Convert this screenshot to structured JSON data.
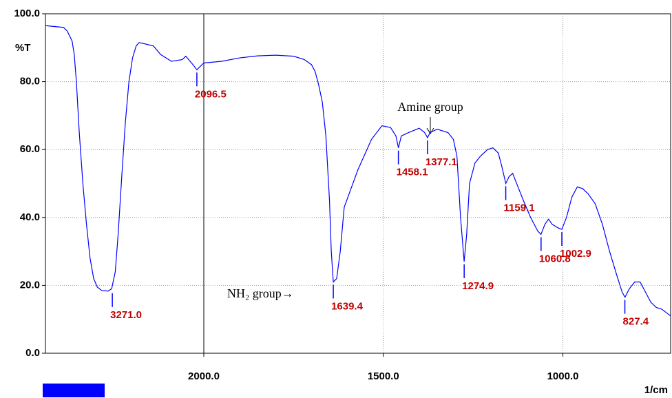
{
  "chart_data": {
    "type": "line",
    "y_label": "%T",
    "x_label": "1/cm",
    "xlim": [
      4200,
      700
    ],
    "xbreak": 2000,
    "ylim": [
      0,
      100
    ],
    "xticks": [
      {
        "value": 2000,
        "label": "2000.0"
      },
      {
        "value": 1500,
        "label": "1500.0"
      },
      {
        "value": 1000,
        "label": "1000.0"
      }
    ],
    "yticks": [
      {
        "value": 0,
        "label": "0.0"
      },
      {
        "value": 20,
        "label": "20.0"
      },
      {
        "value": 40,
        "label": "40.0"
      },
      {
        "value": 60,
        "label": "60.0"
      },
      {
        "value": 80,
        "label": "80.0"
      },
      {
        "value": 100,
        "label": "100.0"
      }
    ],
    "grid": true,
    "series": [
      {
        "color": "#0000ff",
        "x": [
          4200,
          4100,
          3950,
          3900,
          3830,
          3800,
          3770,
          3730,
          3680,
          3630,
          3580,
          3530,
          3480,
          3420,
          3330,
          3280,
          3230,
          3190,
          3140,
          3090,
          3040,
          2990,
          2940,
          2900,
          2850,
          2700,
          2600,
          2450,
          2300,
          2250,
          2150,
          2096.5,
          2050,
          2000,
          1950,
          1900,
          1850,
          1800,
          1750,
          1720,
          1700,
          1690,
          1680,
          1670,
          1660,
          1650,
          1645,
          1639.4,
          1630,
          1620,
          1609,
          1571,
          1533,
          1504,
          1480,
          1465,
          1458,
          1450,
          1430,
          1400,
          1385,
          1377,
          1370,
          1350,
          1320,
          1305,
          1295,
          1285,
          1275,
          1268,
          1260,
          1245,
          1230,
          1210,
          1195,
          1180,
          1170,
          1159,
          1150,
          1140,
          1125,
          1110,
          1090,
          1070,
          1061,
          1050,
          1040,
          1030,
          1015,
          1003,
          990,
          975,
          960,
          945,
          930,
          910,
          890,
          870,
          850,
          835,
          827,
          815,
          800,
          785,
          770,
          755,
          740,
          725,
          710,
          700
        ],
        "values": [
          96.5,
          96.3,
          96,
          95,
          92,
          88,
          80,
          65,
          50,
          38,
          28,
          22,
          19.5,
          18.5,
          18.3,
          19,
          24,
          35,
          52,
          68,
          80,
          87,
          90.5,
          91.5,
          91.3,
          90.5,
          88,
          86,
          86.5,
          87.5,
          85,
          83.5,
          84.5,
          85.5,
          86,
          87,
          87.6,
          87.8,
          87.5,
          86.5,
          85,
          83,
          79,
          74,
          64,
          45,
          30,
          21,
          22,
          30,
          43,
          54,
          63,
          67,
          66.5,
          64,
          60.5,
          64,
          65,
          66.3,
          65,
          63.5,
          65,
          66,
          65,
          63,
          58,
          40,
          27,
          35,
          50,
          56,
          58,
          60,
          60.5,
          59,
          55,
          50,
          52,
          53,
          49,
          45,
          40,
          36,
          35,
          38,
          39.5,
          38,
          37,
          36.5,
          40,
          46,
          49,
          48.5,
          47,
          44,
          38,
          30,
          23,
          18,
          16.5,
          19,
          21,
          21,
          18,
          15,
          13.5,
          13,
          11.8,
          11
        ]
      }
    ],
    "peaks": {
      "x": [
        3271.0,
        2096.5,
        1639.4,
        1458.1,
        1377.1,
        1274.9,
        1159.1,
        1060.8,
        1002.9,
        827.4
      ],
      "y": [
        18.5,
        83.5,
        21,
        60.5,
        63.5,
        27,
        50,
        35,
        36.5,
        16.5
      ],
      "value_labels": [
        "3271.0",
        "2096.5",
        "1639.4",
        "1458.1",
        "1377.1",
        "1274.9",
        "1159.1",
        "1060.8",
        "1002.9",
        "827.4"
      ]
    },
    "annotations": [
      "Amine group",
      "NH₂ group→"
    ]
  }
}
